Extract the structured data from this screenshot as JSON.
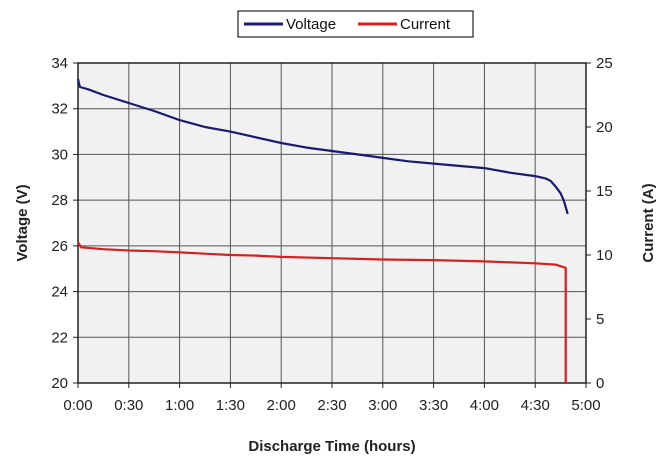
{
  "chart_data": {
    "type": "line",
    "xlabel": "Discharge Time (hours)",
    "ylabel_left": "Voltage (V)",
    "ylabel_right": "Current (A)",
    "x_ticks": [
      "0:00",
      "0:30",
      "1:00",
      "1:30",
      "2:00",
      "2:30",
      "3:00",
      "3:30",
      "4:00",
      "4:30",
      "5:00"
    ],
    "xlim_hours": [
      0,
      5
    ],
    "ylim_left": [
      20,
      34
    ],
    "y_ticks_left": [
      20,
      22,
      24,
      26,
      28,
      30,
      32,
      34
    ],
    "ylim_right": [
      0,
      25
    ],
    "y_ticks_right": [
      0,
      5,
      10,
      15,
      20,
      25
    ],
    "grid": true,
    "legend_position": "top-center",
    "series": [
      {
        "name": "Voltage",
        "axis": "left",
        "color": "#1a1a6e",
        "points": [
          [
            0.0,
            33.3
          ],
          [
            0.01,
            33.1
          ],
          [
            0.02,
            32.95
          ],
          [
            0.1,
            32.85
          ],
          [
            0.25,
            32.6
          ],
          [
            0.5,
            32.25
          ],
          [
            0.75,
            31.9
          ],
          [
            1.0,
            31.5
          ],
          [
            1.25,
            31.2
          ],
          [
            1.5,
            31.0
          ],
          [
            1.75,
            30.75
          ],
          [
            2.0,
            30.5
          ],
          [
            2.25,
            30.3
          ],
          [
            2.5,
            30.15
          ],
          [
            2.75,
            30.0
          ],
          [
            3.0,
            29.85
          ],
          [
            3.25,
            29.7
          ],
          [
            3.5,
            29.6
          ],
          [
            3.75,
            29.5
          ],
          [
            4.0,
            29.4
          ],
          [
            4.25,
            29.2
          ],
          [
            4.5,
            29.05
          ],
          [
            4.6,
            28.95
          ],
          [
            4.65,
            28.85
          ],
          [
            4.7,
            28.6
          ],
          [
            4.75,
            28.3
          ],
          [
            4.78,
            28.0
          ],
          [
            4.8,
            27.7
          ],
          [
            4.82,
            27.4
          ]
        ]
      },
      {
        "name": "Current",
        "axis": "right",
        "color": "#d62020",
        "points": [
          [
            0.0,
            11.0
          ],
          [
            0.03,
            10.6
          ],
          [
            0.25,
            10.45
          ],
          [
            0.5,
            10.35
          ],
          [
            0.75,
            10.3
          ],
          [
            1.0,
            10.2
          ],
          [
            1.25,
            10.1
          ],
          [
            1.5,
            10.0
          ],
          [
            1.75,
            9.95
          ],
          [
            2.0,
            9.85
          ],
          [
            2.5,
            9.75
          ],
          [
            3.0,
            9.65
          ],
          [
            3.5,
            9.6
          ],
          [
            4.0,
            9.5
          ],
          [
            4.5,
            9.35
          ],
          [
            4.7,
            9.25
          ],
          [
            4.8,
            9.0
          ],
          [
            4.8,
            0.0
          ]
        ]
      }
    ]
  }
}
